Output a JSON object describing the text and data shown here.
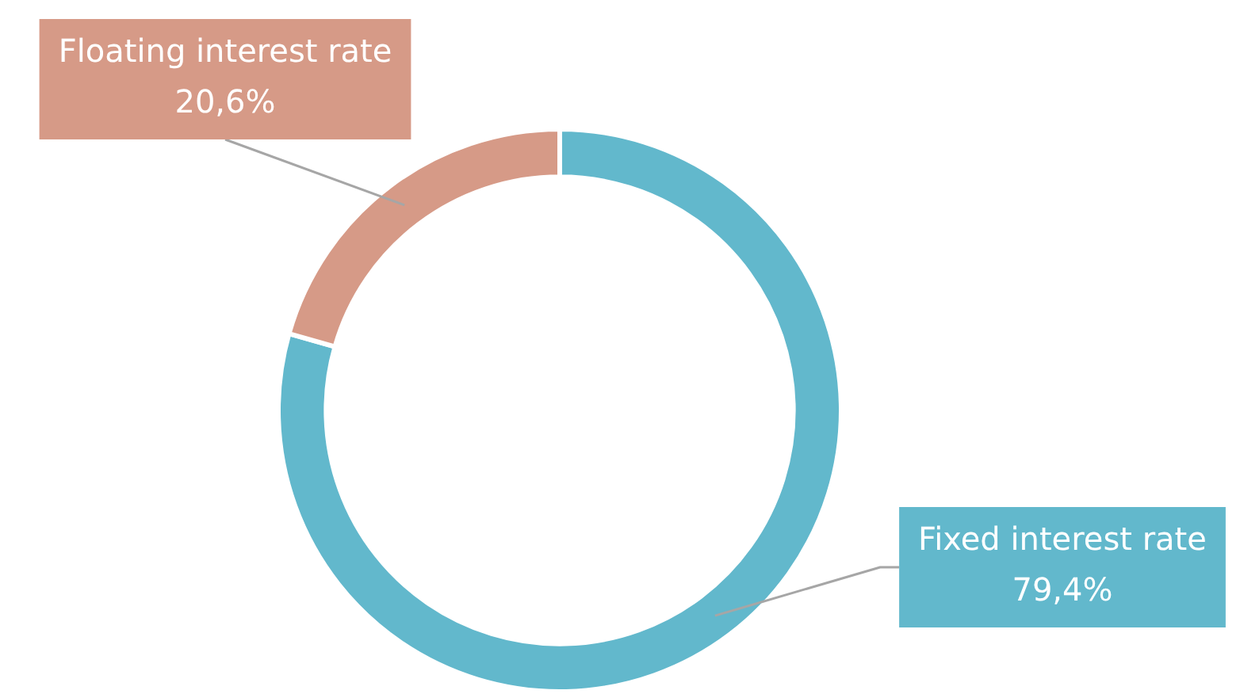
{
  "chart_data": {
    "type": "donut",
    "categories": [
      "Fixed interest rate",
      "Floating interest rate"
    ],
    "values": [
      79.4,
      20.6
    ],
    "value_labels": [
      "79,4%",
      "20,6%"
    ],
    "colors": [
      "#62b8cc",
      "#d69a87"
    ],
    "legend": false
  }
}
